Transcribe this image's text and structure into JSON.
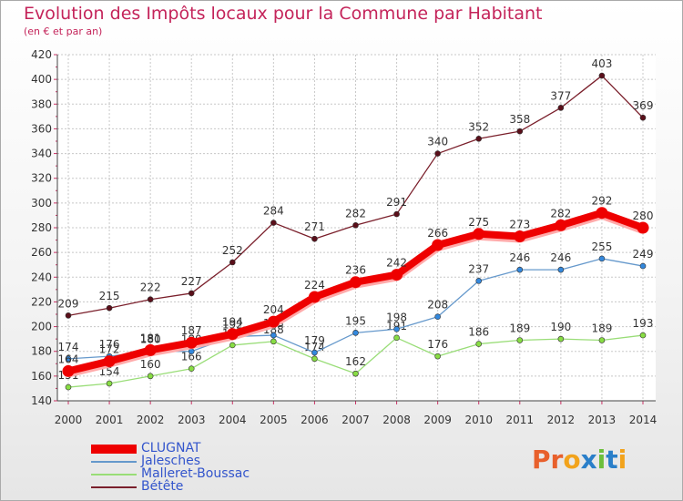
{
  "title": "Evolution des Impôts locaux pour la Commune par Habitant",
  "subtitle": "(en € et par an)",
  "logo_text": "Proxiti",
  "logo_colors": [
    "#e8602c",
    "#e8602c",
    "#f2a31c",
    "#2a7fc9",
    "#6cbf3b",
    "#2a7fc9",
    "#f2a31c"
  ],
  "chart_data": {
    "type": "line",
    "x": [
      "2000",
      "2001",
      "2002",
      "2003",
      "2004",
      "2005",
      "2006",
      "2007",
      "2008",
      "2009",
      "2010",
      "2011",
      "2012",
      "2013",
      "2014"
    ],
    "ylim": [
      140,
      420
    ],
    "yticks": [
      140,
      160,
      180,
      200,
      220,
      240,
      260,
      280,
      300,
      320,
      340,
      360,
      380,
      400,
      420
    ],
    "grid": true,
    "legend_position": "bottom-left",
    "series": [
      {
        "name": "Bétête",
        "color": "#7a1f2b",
        "point_color": "#5a0f1a",
        "values": [
          209,
          215,
          222,
          227,
          252,
          284,
          271,
          282,
          291,
          340,
          352,
          358,
          377,
          403,
          369
        ],
        "labels": [
          "209",
          "215",
          "222",
          "227",
          "252",
          "284",
          "271",
          "282",
          "291",
          "340",
          "352",
          "358",
          "377",
          "403",
          "369"
        ]
      },
      {
        "name": "Malleret-Boussac",
        "color": "#99dd77",
        "point_color": "#88dd44",
        "values": [
          151,
          154,
          160,
          166,
          185,
          188,
          174,
          162,
          191,
          176,
          186,
          189,
          190,
          189,
          193
        ],
        "labels": [
          "151",
          "154",
          "160",
          "166",
          "185",
          "188",
          "174",
          "162",
          "191",
          "176",
          "186",
          "189",
          "190",
          "189",
          "193"
        ]
      },
      {
        "name": "Jalesches",
        "color": "#6699cc",
        "point_color": "#3388dd",
        "values": [
          174,
          176,
          180,
          180,
          192,
          193,
          179,
          195,
          198,
          208,
          237,
          246,
          246,
          255,
          249
        ],
        "labels": [
          "174",
          "176",
          "180",
          "180",
          "192",
          "193",
          "179",
          "195",
          "198",
          "208",
          "237",
          "246",
          "246",
          "255",
          "249"
        ]
      },
      {
        "name": "CLUGNAT",
        "color": "#ee0000",
        "point_color": "#ee0000",
        "values": [
          164,
          172,
          181,
          187,
          194,
          204,
          224,
          236,
          242,
          266,
          275,
          273,
          282,
          292,
          280
        ],
        "labels": [
          "164",
          "172",
          "181",
          "187",
          "194",
          "204",
          "224",
          "236",
          "242",
          "266",
          "275",
          "273",
          "282",
          "292",
          "280"
        ]
      }
    ]
  }
}
